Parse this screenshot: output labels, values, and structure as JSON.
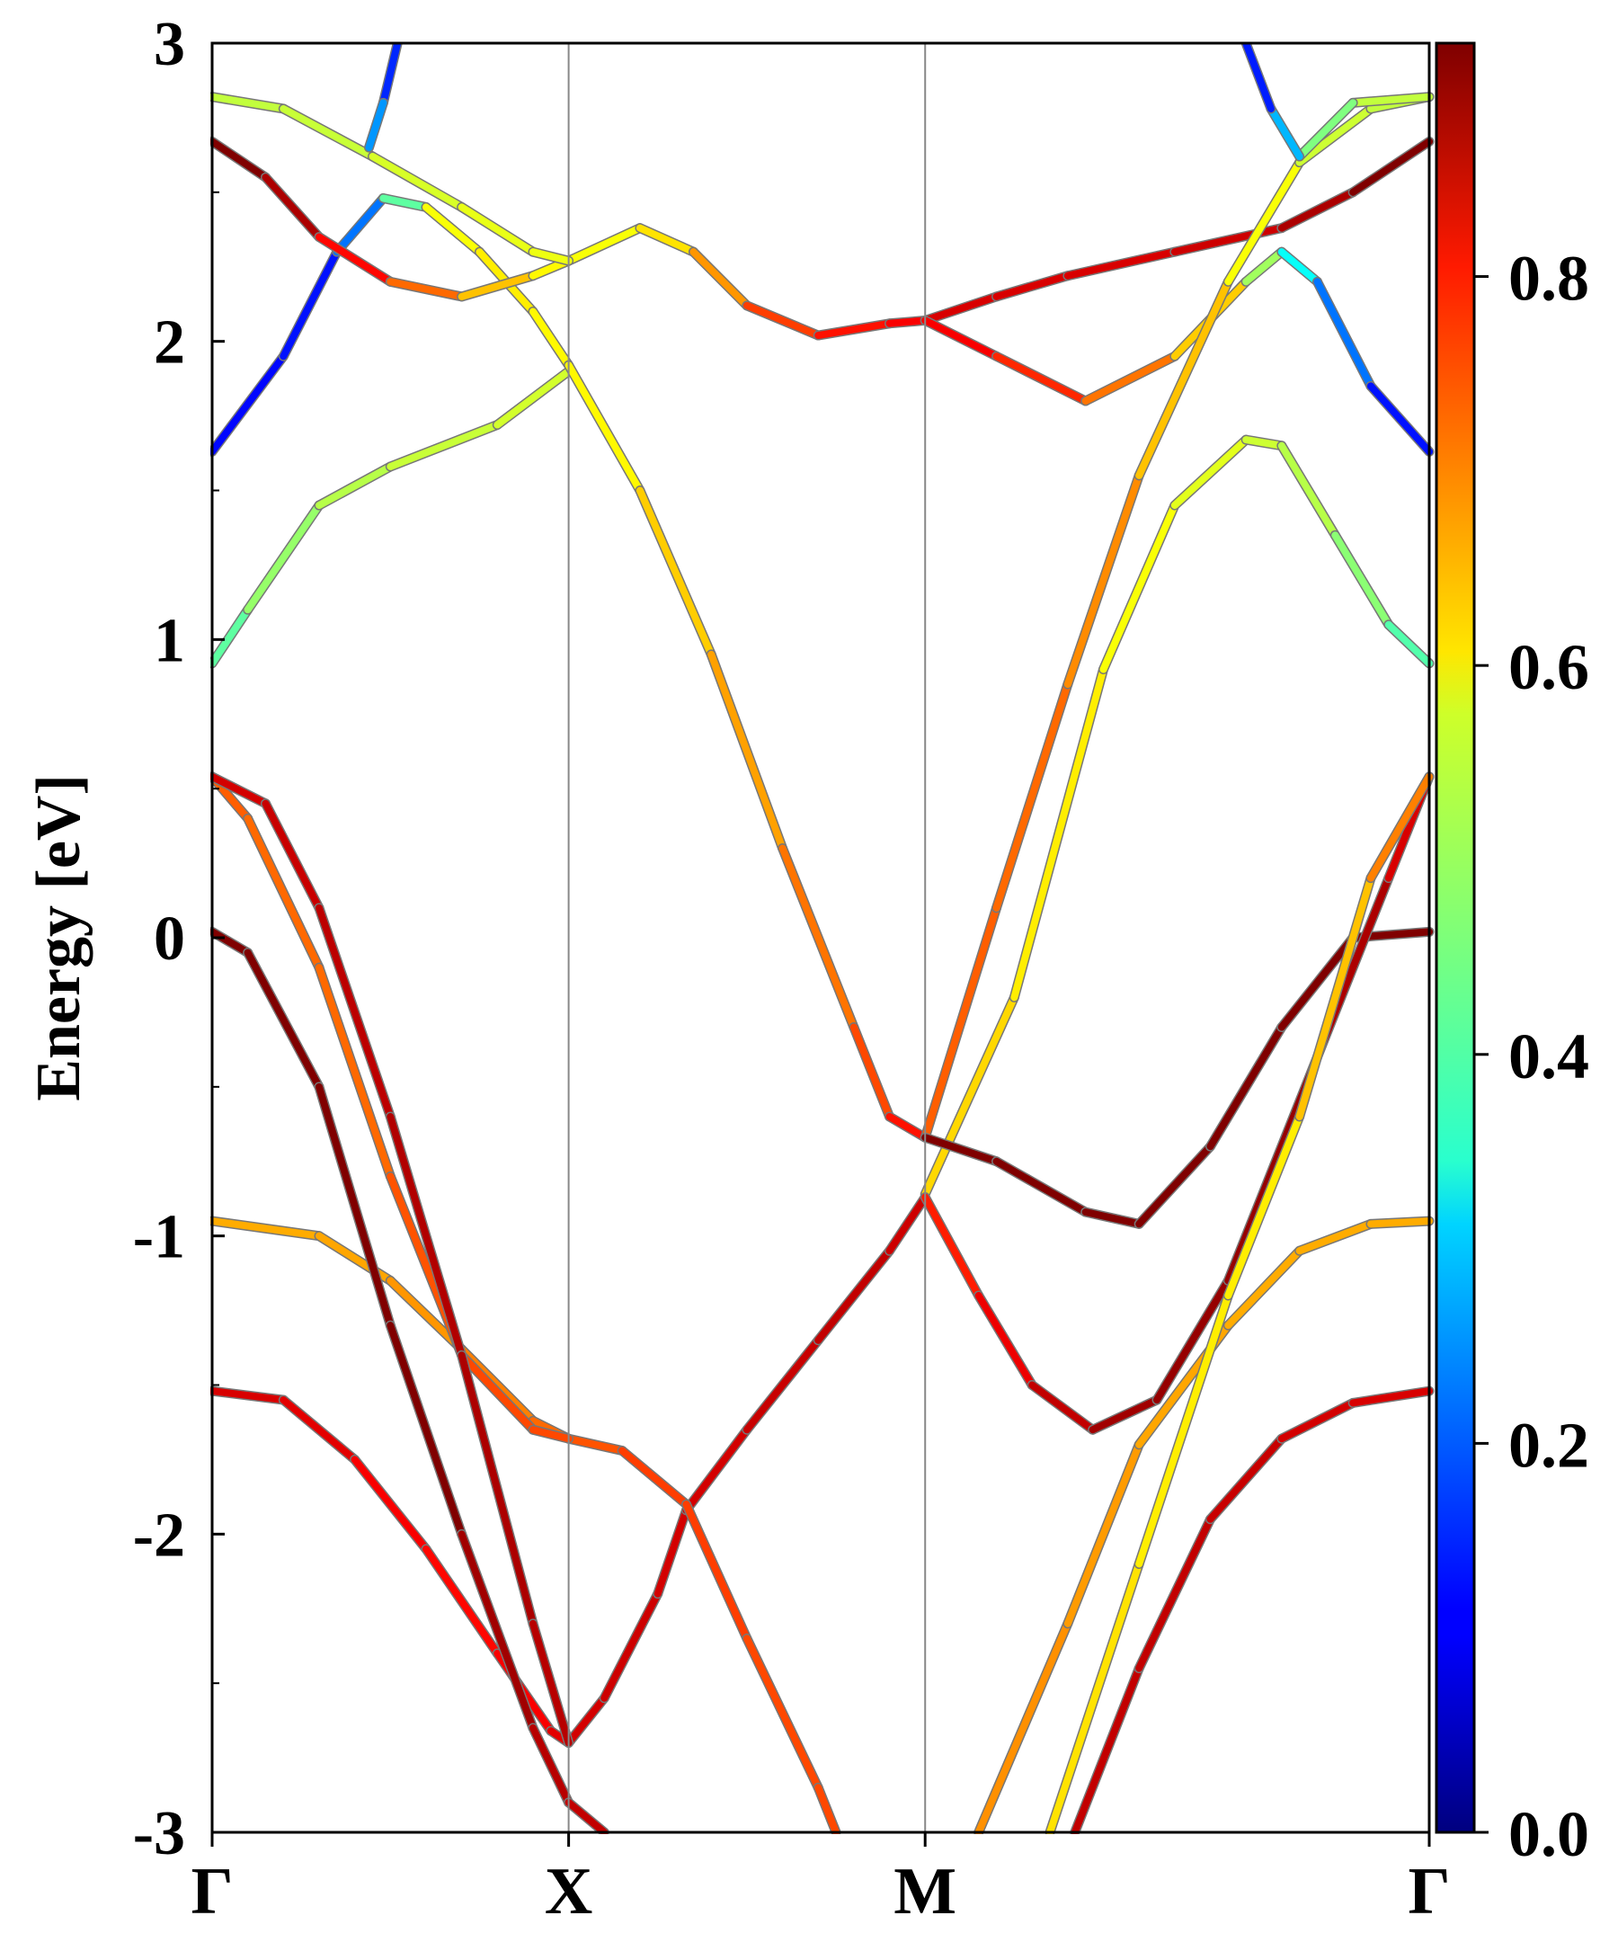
{
  "chart_data": {
    "type": "line",
    "title": "",
    "ylabel": "Energy [eV]",
    "xlabel": "",
    "ylim": [
      -3,
      3
    ],
    "yticks": [
      "3",
      "2",
      "1",
      "0",
      "-1",
      "-2",
      "-3"
    ],
    "ytick_values": [
      3,
      2,
      1,
      0,
      -1,
      -2,
      -3
    ],
    "k_points": [
      {
        "label": "Γ",
        "x": 0.0
      },
      {
        "label": "X",
        "x": 1.0
      },
      {
        "label": "M",
        "x": 2.0
      },
      {
        "label": "Γ",
        "x": 3.414
      }
    ],
    "xlim": [
      0,
      3.414
    ],
    "grid": false,
    "colorbar": {
      "colormap": "jet",
      "range": [
        0.0,
        0.92
      ],
      "ticks": [
        "0.0",
        "0.2",
        "0.4",
        "0.6",
        "0.8"
      ],
      "tick_values": [
        0.0,
        0.2,
        0.4,
        0.6,
        0.8
      ]
    },
    "series": [
      {
        "points": [
          [
            0,
            -1.52
          ],
          [
            0.2,
            -1.55
          ],
          [
            0.4,
            -1.75
          ],
          [
            0.6,
            -2.05
          ],
          [
            0.8,
            -2.4
          ],
          [
            0.95,
            -2.66
          ],
          [
            1.0,
            -2.7
          ],
          [
            1.1,
            -2.55
          ],
          [
            1.25,
            -2.2
          ],
          [
            1.33,
            -1.92
          ],
          [
            1.5,
            -1.65
          ],
          [
            1.7,
            -1.35
          ],
          [
            1.9,
            -1.05
          ],
          [
            2.0,
            -0.87
          ]
        ],
        "weights": [
          0.84,
          0.84,
          0.82,
          0.8,
          0.8,
          0.82,
          0.84,
          0.85,
          0.85,
          0.84,
          0.85,
          0.86,
          0.86,
          0.84
        ]
      },
      {
        "points": [
          [
            0,
            -0.95
          ],
          [
            0.3,
            -1.0
          ],
          [
            0.5,
            -1.15
          ],
          [
            0.7,
            -1.38
          ],
          [
            0.9,
            -1.62
          ],
          [
            1.0,
            -1.68
          ],
          [
            1.15,
            -1.72
          ],
          [
            1.33,
            -1.9
          ],
          [
            1.5,
            -2.35
          ],
          [
            1.7,
            -2.85
          ],
          [
            1.75,
            -3.0
          ]
        ],
        "weights": [
          0.65,
          0.65,
          0.66,
          0.68,
          0.7,
          0.72,
          0.74,
          0.76,
          0.74,
          0.74,
          0.74
        ]
      },
      {
        "points": [
          [
            0,
            0.54
          ],
          [
            0.1,
            0.4
          ],
          [
            0.3,
            -0.1
          ],
          [
            0.5,
            -0.8
          ],
          [
            0.7,
            -1.4
          ],
          [
            0.9,
            -1.65
          ],
          [
            1.0,
            -1.68
          ]
        ],
        "weights": [
          0.72,
          0.72,
          0.7,
          0.72,
          0.74,
          0.74,
          0.74
        ]
      },
      {
        "points": [
          [
            0,
            0.54
          ],
          [
            0.15,
            0.45
          ],
          [
            0.3,
            0.1
          ],
          [
            0.5,
            -0.6
          ],
          [
            0.7,
            -1.4
          ],
          [
            0.9,
            -2.3
          ],
          [
            1.0,
            -2.7
          ]
        ],
        "weights": [
          0.84,
          0.85,
          0.86,
          0.87,
          0.88,
          0.88,
          0.86
        ]
      },
      {
        "points": [
          [
            0,
            0.02
          ],
          [
            0.1,
            -0.05
          ],
          [
            0.3,
            -0.5
          ],
          [
            0.5,
            -1.3
          ],
          [
            0.7,
            -2.0
          ],
          [
            0.9,
            -2.65
          ],
          [
            1.0,
            -2.9
          ],
          [
            1.1,
            -3.0
          ]
        ],
        "weights": [
          0.98,
          0.98,
          0.96,
          0.94,
          0.9,
          0.88,
          0.86,
          0.86
        ]
      },
      {
        "points": [
          [
            0,
            0.92
          ],
          [
            0.1,
            1.1
          ],
          [
            0.3,
            1.45
          ],
          [
            0.5,
            1.58
          ],
          [
            0.8,
            1.72
          ],
          [
            1.0,
            1.9
          ]
        ],
        "weights": [
          0.4,
          0.46,
          0.5,
          0.52,
          0.53,
          0.54
        ]
      },
      {
        "points": [
          [
            0,
            1.63
          ],
          [
            0.2,
            1.95
          ],
          [
            0.35,
            2.3
          ],
          [
            0.48,
            2.48
          ],
          [
            0.6,
            2.45
          ],
          [
            0.75,
            2.3
          ],
          [
            0.9,
            2.1
          ],
          [
            1.0,
            1.92
          ]
        ],
        "weights": [
          0.12,
          0.12,
          0.14,
          0.3,
          0.56,
          0.58,
          0.6,
          0.56
        ]
      },
      {
        "points": [
          [
            1.0,
            1.92
          ],
          [
            1.2,
            1.5
          ],
          [
            1.4,
            0.95
          ],
          [
            1.6,
            0.3
          ],
          [
            1.8,
            -0.3
          ],
          [
            1.9,
            -0.6
          ],
          [
            2.0,
            -0.67
          ]
        ],
        "weights": [
          0.56,
          0.6,
          0.64,
          0.68,
          0.72,
          0.76,
          0.82
        ]
      },
      {
        "points": [
          [
            0,
            2.67
          ],
          [
            0.15,
            2.55
          ],
          [
            0.3,
            2.35
          ],
          [
            0.5,
            2.2
          ],
          [
            0.7,
            2.15
          ],
          [
            0.9,
            2.22
          ],
          [
            1.0,
            2.27
          ],
          [
            1.2,
            2.38
          ],
          [
            1.35,
            2.3
          ],
          [
            1.5,
            2.12
          ],
          [
            1.7,
            2.02
          ],
          [
            1.9,
            2.06
          ],
          [
            2.0,
            2.07
          ]
        ],
        "weights": [
          0.98,
          0.92,
          0.84,
          0.76,
          0.66,
          0.6,
          0.56,
          0.58,
          0.62,
          0.72,
          0.78,
          0.8,
          0.82
        ]
      },
      {
        "points": [
          [
            0,
            2.82
          ],
          [
            0.2,
            2.78
          ],
          [
            0.45,
            2.62
          ],
          [
            0.7,
            2.45
          ],
          [
            0.9,
            2.3
          ],
          [
            1.0,
            2.27
          ]
        ],
        "weights": [
          0.52,
          0.52,
          0.53,
          0.55,
          0.56,
          0.56
        ]
      },
      {
        "points": [
          [
            0.52,
            3.0
          ],
          [
            0.48,
            2.8
          ],
          [
            0.44,
            2.65
          ]
        ],
        "weights": [
          0.14,
          0.16,
          0.34
        ]
      },
      {
        "points": [
          [
            2.0,
            2.07
          ],
          [
            2.2,
            2.15
          ],
          [
            2.4,
            2.22
          ],
          [
            2.7,
            2.3
          ],
          [
            3.0,
            2.38
          ],
          [
            3.2,
            2.5
          ],
          [
            3.414,
            2.67
          ]
        ],
        "weights": [
          0.84,
          0.84,
          0.84,
          0.84,
          0.86,
          0.9,
          0.98
        ]
      },
      {
        "points": [
          [
            2.0,
            2.07
          ],
          [
            2.2,
            1.95
          ],
          [
            2.45,
            1.8
          ],
          [
            2.7,
            1.95
          ],
          [
            2.9,
            2.2
          ],
          [
            3.0,
            2.3
          ],
          [
            3.1,
            2.2
          ],
          [
            3.25,
            1.85
          ],
          [
            3.414,
            1.63
          ]
        ],
        "weights": [
          0.82,
          0.8,
          0.74,
          0.66,
          0.58,
          0.4,
          0.3,
          0.14,
          0.12
        ]
      },
      {
        "points": [
          [
            2.0,
            -0.67
          ],
          [
            2.2,
            0.1
          ],
          [
            2.4,
            0.85
          ],
          [
            2.6,
            1.55
          ],
          [
            2.85,
            2.2
          ],
          [
            3.05,
            2.6
          ],
          [
            3.25,
            2.78
          ],
          [
            3.414,
            2.82
          ]
        ],
        "weights": [
          0.72,
          0.72,
          0.7,
          0.66,
          0.6,
          0.54,
          0.52,
          0.52
        ]
      },
      {
        "points": [
          [
            2.0,
            -0.86
          ],
          [
            2.25,
            -0.2
          ],
          [
            2.5,
            0.9
          ],
          [
            2.7,
            1.45
          ],
          [
            2.9,
            1.67
          ],
          [
            3.0,
            1.65
          ],
          [
            3.15,
            1.35
          ],
          [
            3.3,
            1.05
          ],
          [
            3.414,
            0.92
          ]
        ],
        "weights": [
          0.62,
          0.6,
          0.58,
          0.56,
          0.54,
          0.52,
          0.5,
          0.44,
          0.4
        ]
      },
      {
        "points": [
          [
            2.0,
            -0.67
          ],
          [
            2.2,
            -0.75
          ],
          [
            2.45,
            -0.92
          ],
          [
            2.6,
            -0.96
          ],
          [
            2.8,
            -0.7
          ],
          [
            3.0,
            -0.3
          ],
          [
            3.2,
            0.0
          ],
          [
            3.414,
            0.02
          ]
        ],
        "weights": [
          0.92,
          0.94,
          0.96,
          0.98,
          0.98,
          0.98,
          0.98,
          0.98
        ]
      },
      {
        "points": [
          [
            2.0,
            -0.87
          ],
          [
            2.15,
            -1.2
          ],
          [
            2.3,
            -1.5
          ],
          [
            2.47,
            -1.65
          ],
          [
            2.65,
            -1.55
          ],
          [
            2.85,
            -1.15
          ],
          [
            3.1,
            -0.4
          ],
          [
            3.3,
            0.2
          ],
          [
            3.414,
            0.54
          ]
        ],
        "weights": [
          0.76,
          0.8,
          0.84,
          0.88,
          0.9,
          0.9,
          0.9,
          0.86,
          0.82
        ]
      },
      {
        "points": [
          [
            2.15,
            -3.0
          ],
          [
            2.4,
            -2.3
          ],
          [
            2.6,
            -1.7
          ],
          [
            2.85,
            -1.3
          ],
          [
            3.05,
            -1.05
          ],
          [
            3.25,
            -0.96
          ],
          [
            3.414,
            -0.95
          ]
        ],
        "weights": [
          0.68,
          0.67,
          0.66,
          0.65,
          0.65,
          0.65,
          0.65
        ]
      },
      {
        "points": [
          [
            2.35,
            -3.0
          ],
          [
            2.6,
            -2.1
          ],
          [
            2.85,
            -1.2
          ],
          [
            3.05,
            -0.6
          ],
          [
            3.25,
            0.2
          ],
          [
            3.414,
            0.54
          ]
        ],
        "weights": [
          0.6,
          0.6,
          0.58,
          0.6,
          0.66,
          0.72
        ]
      },
      {
        "points": [
          [
            2.42,
            -3.0
          ],
          [
            2.6,
            -2.45
          ],
          [
            2.8,
            -1.95
          ],
          [
            3.0,
            -1.68
          ],
          [
            3.2,
            -1.56
          ],
          [
            3.414,
            -1.52
          ]
        ],
        "weights": [
          0.86,
          0.86,
          0.86,
          0.85,
          0.84,
          0.84
        ]
      },
      {
        "points": [
          [
            3.414,
            2.82
          ],
          [
            3.2,
            2.8
          ],
          [
            3.05,
            2.62
          ],
          [
            2.97,
            2.78
          ],
          [
            2.9,
            3.0
          ]
        ],
        "weights": [
          0.52,
          0.52,
          0.4,
          0.16,
          0.12
        ]
      }
    ]
  }
}
